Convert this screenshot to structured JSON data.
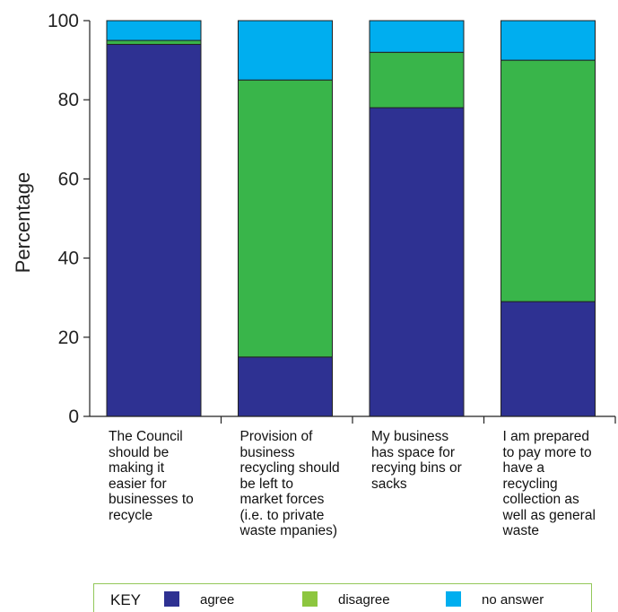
{
  "chart_data": {
    "type": "bar",
    "stacked": true,
    "ylabel": "Percentage",
    "ylim": [
      0,
      100
    ],
    "yticks": [
      0,
      20,
      40,
      60,
      80,
      100
    ],
    "categories": [
      "The Council should be making it easier for businesses to recycle",
      "Provision of business recycling should be left to market forces (i.e. to private waste mpanies)",
      "My business has space for recying bins or sacks",
      "I am prepared to pay more to have a recycling collection as well as general waste"
    ],
    "category_lines": [
      [
        "The Council",
        "should be",
        "making it",
        "easier for",
        "businesses to",
        "recycle"
      ],
      [
        "Provision of",
        "business",
        "recycling should",
        "be left to",
        "market forces",
        "(i.e. to private",
        "waste mpanies)"
      ],
      [
        "My business",
        "has space for",
        "recying bins or",
        "sacks"
      ],
      [
        "I am prepared",
        "to pay more to",
        "have a",
        "recycling",
        "collection as",
        "well as general",
        "waste"
      ]
    ],
    "series": [
      {
        "name": "agree",
        "color": "#2e3192",
        "values": [
          94,
          15,
          78,
          29
        ]
      },
      {
        "name": "disagree",
        "color": "#39b54a",
        "values": [
          1,
          70,
          14,
          61
        ]
      },
      {
        "name": "no answer",
        "color": "#00aeef",
        "values": [
          5,
          15,
          8,
          10
        ]
      }
    ],
    "grid": false,
    "legend_position": "bottom"
  },
  "key": {
    "title": "KEY",
    "swatch_colors": [
      "#2e3192",
      "#8dc63f",
      "#00aeef"
    ],
    "border_color": "#93c85a"
  }
}
